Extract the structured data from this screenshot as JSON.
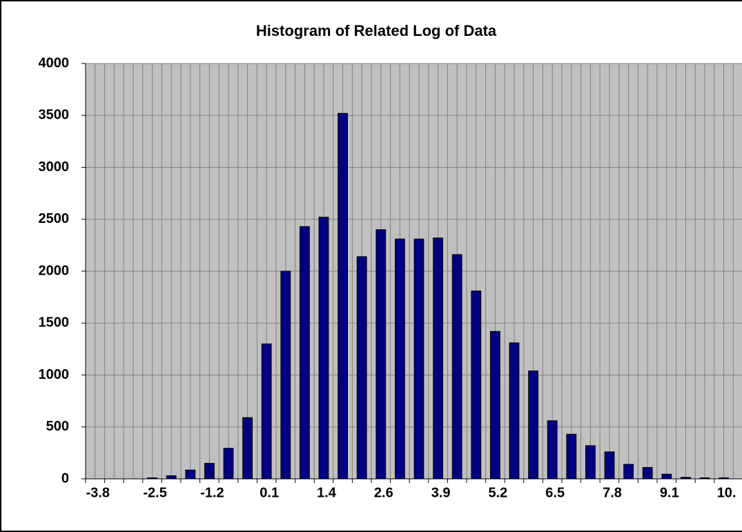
{
  "chart_data": {
    "type": "bar",
    "title": "Histogram of Related Log of Data",
    "categories": [
      "-3.8",
      null,
      null,
      "-2.5",
      null,
      null,
      "-1.2",
      null,
      null,
      "0.1",
      null,
      null,
      "1.4",
      null,
      null,
      "2.6",
      null,
      null,
      "3.9",
      null,
      null,
      "5.2",
      null,
      null,
      "6.5",
      null,
      null,
      "7.8",
      null,
      null,
      "9.1",
      null,
      null,
      "10."
    ],
    "values": [
      0,
      0,
      0,
      10,
      30,
      85,
      150,
      295,
      590,
      1300,
      2000,
      2430,
      2520,
      3520,
      2140,
      2400,
      2310,
      2310,
      2320,
      2160,
      1810,
      1420,
      1310,
      1040,
      560,
      430,
      320,
      260,
      140,
      110,
      45,
      15,
      10,
      10
    ],
    "color": "#000080",
    "ylim": [
      0,
      4000
    ],
    "yticks": [
      0,
      500,
      1000,
      1500,
      2000,
      2500,
      3000,
      3500,
      4000
    ],
    "grid": true
  }
}
